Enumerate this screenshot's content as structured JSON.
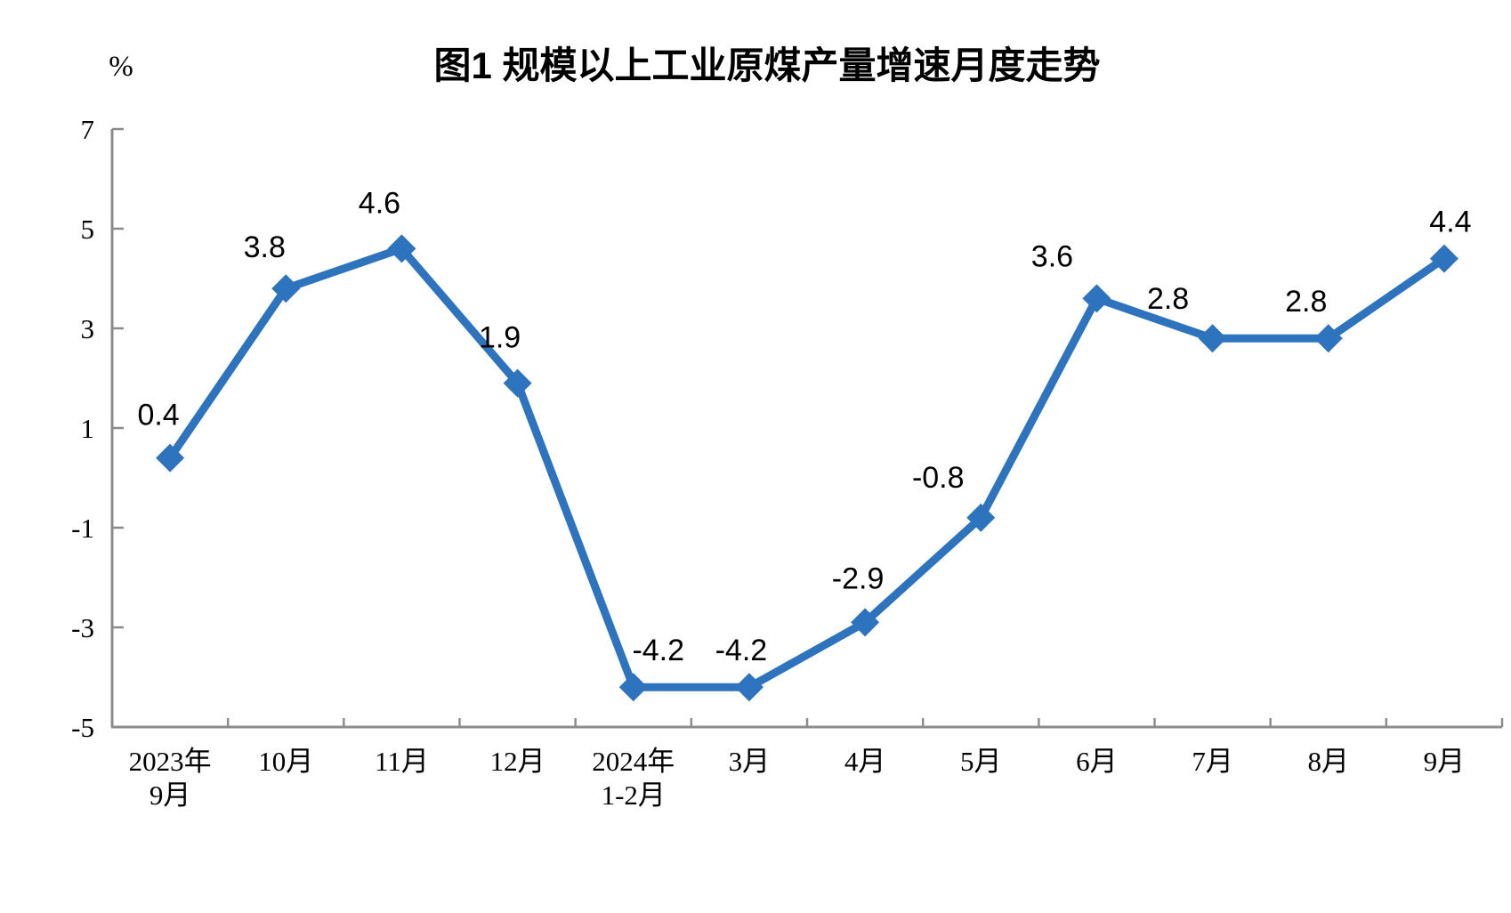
{
  "page": {
    "background": "#ffffff"
  },
  "chart_data": {
    "type": "line",
    "title": "图1  规模以上工业原煤产量增速月度走势",
    "ylabel": "%",
    "categories": [
      [
        "2023年",
        "9月"
      ],
      [
        "10月"
      ],
      [
        "11月"
      ],
      [
        "12月"
      ],
      [
        "2024年",
        "1-2月"
      ],
      [
        "3月"
      ],
      [
        "4月"
      ],
      [
        "5月"
      ],
      [
        "6月"
      ],
      [
        "7月"
      ],
      [
        "8月"
      ],
      [
        "9月"
      ]
    ],
    "values": [
      0.4,
      3.8,
      4.6,
      1.9,
      -4.2,
      -4.2,
      -2.9,
      -0.8,
      3.6,
      2.8,
      2.8,
      4.4
    ],
    "data_labels": [
      "0.4",
      "3.8",
      "4.6",
      "1.9",
      "-4.2",
      "-4.2",
      "-2.9",
      "-0.8",
      "3.6",
      "2.8",
      "2.8",
      "4.4"
    ],
    "ylim": [
      -5,
      7
    ],
    "yticks": [
      7,
      5,
      3,
      1,
      -1,
      -3,
      -5
    ],
    "grid": false,
    "legend": "none",
    "marker": "diamond",
    "colors": {
      "line": "#2E73BE",
      "axis": "#8C8C8C",
      "text": "#000000"
    }
  }
}
